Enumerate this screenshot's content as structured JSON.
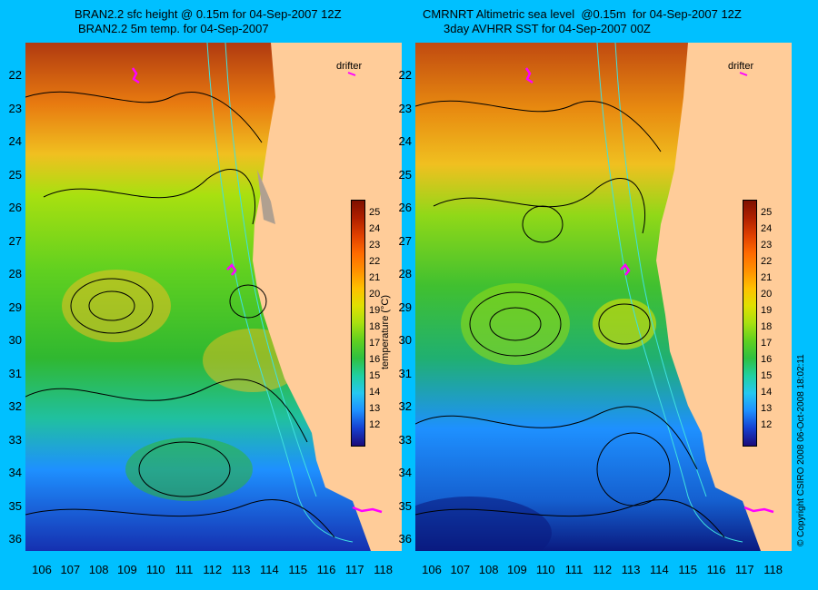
{
  "left_panel": {
    "title_line1": "BRAN2.2 sfc height @ 0.15m for 04-Sep-2007 12Z",
    "title_line2": "BRAN2.2 5m temp. for 04-Sep-2007",
    "drifter_label": "drifter"
  },
  "right_panel": {
    "title_line1": "CMRNRT Altimetric sea level  @0.15m  for 04-Sep-2007 12Z",
    "title_line2": "3day AVHRR SST for 04-Sep-2007 00Z",
    "drifter_label": "drifter"
  },
  "y_axis_labels": [
    "22",
    "23",
    "24",
    "25",
    "26",
    "27",
    "28",
    "29",
    "30",
    "31",
    "32",
    "33",
    "34",
    "35",
    "36"
  ],
  "x_axis_labels": [
    "106",
    "107",
    "108",
    "109",
    "110",
    "111",
    "112",
    "113",
    "114",
    "115",
    "116",
    "117",
    "118"
  ],
  "colorbar": {
    "ticks": [
      "25",
      "24",
      "23",
      "22",
      "21",
      "20",
      "19",
      "18",
      "17",
      "16",
      "15",
      "14",
      "13",
      "12"
    ],
    "unit": "temperature (°C)",
    "colors": [
      "#1a0a7a",
      "#1540d0",
      "#1e90ff",
      "#25c8f0",
      "#20d0a0",
      "#30c040",
      "#60d020",
      "#a8e010",
      "#e0e000",
      "#ffc000",
      "#ff9000",
      "#ff6a00",
      "#e04000",
      "#b02000",
      "#801000"
    ]
  },
  "copyright": "© Copyright CSIRO 2008    06-Oct-2008 18:02:11",
  "colors": {
    "background": "#00c0ff",
    "land": "#ffcc99",
    "contour": "#000000",
    "isobath": "#40e0e0",
    "drifter_track": "#ff00ff"
  }
}
